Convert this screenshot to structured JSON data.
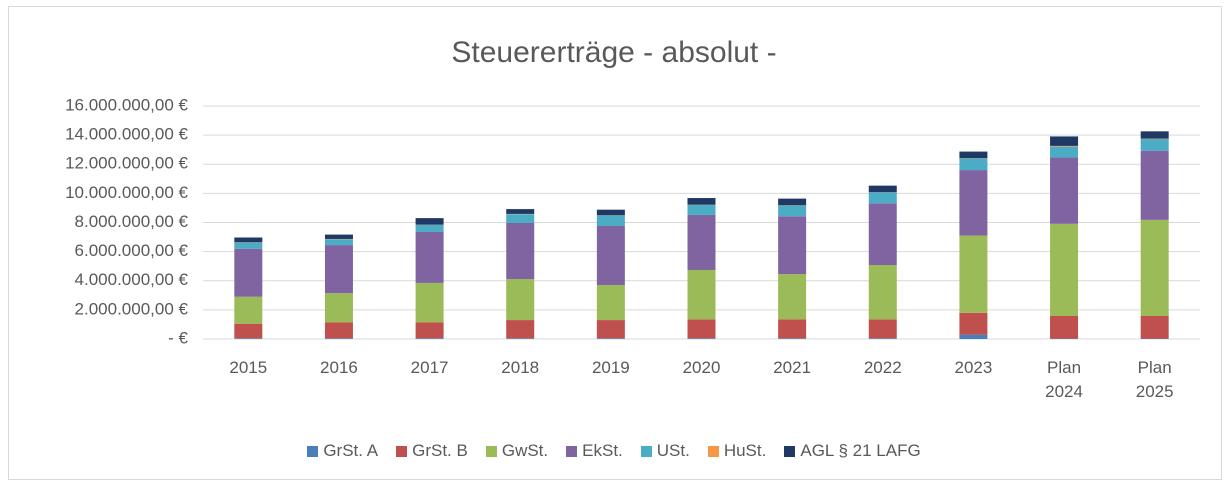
{
  "chart_data": {
    "type": "stacked_bar",
    "title": "Steuererträge - absolut -",
    "categories": [
      "2015",
      "2016",
      "2017",
      "2018",
      "2019",
      "2020",
      "2021",
      "2022",
      "2023",
      "Plan 2024",
      "Plan 2025"
    ],
    "series": [
      {
        "name": "GrSt. A",
        "color": "#4a7ebb",
        "values": [
          50000,
          50000,
          50000,
          50000,
          50000,
          50000,
          50000,
          50000,
          300000,
          30000,
          30000
        ]
      },
      {
        "name": "GrSt. B",
        "color": "#c0504d",
        "values": [
          1000000,
          1100000,
          1100000,
          1250000,
          1250000,
          1300000,
          1300000,
          1300000,
          1500000,
          1550000,
          1550000
        ]
      },
      {
        "name": "GwSt.",
        "color": "#9bbb59",
        "values": [
          1850000,
          2000000,
          2700000,
          2820000,
          2400000,
          3390000,
          3110000,
          3730000,
          5300000,
          6330000,
          6600000
        ]
      },
      {
        "name": "EkSt.",
        "color": "#8064a2",
        "values": [
          3300000,
          3300000,
          3500000,
          3850000,
          4060000,
          3780000,
          3970000,
          4240000,
          4500000,
          4550000,
          4750000
        ]
      },
      {
        "name": "USt.",
        "color": "#4bacc6",
        "values": [
          420000,
          400000,
          480000,
          600000,
          720000,
          680000,
          730000,
          740000,
          800000,
          750000,
          800000
        ]
      },
      {
        "name": "HuSt.",
        "color": "#f79646",
        "values": [
          20000,
          20000,
          20000,
          20000,
          20000,
          20000,
          20000,
          20000,
          20000,
          50000,
          30000
        ]
      },
      {
        "name": "AGL § 21 LAFG",
        "color": "#1f3864",
        "values": [
          330000,
          300000,
          450000,
          330000,
          380000,
          460000,
          460000,
          450000,
          450000,
          650000,
          500000
        ]
      }
    ],
    "ylim": [
      0,
      16000000
    ],
    "yticks": [
      {
        "value": 0,
        "label": "-   €"
      },
      {
        "value": 2000000,
        "label": "2.000.000,00 €"
      },
      {
        "value": 4000000,
        "label": "4.000.000,00 €"
      },
      {
        "value": 6000000,
        "label": "6.000.000,00 €"
      },
      {
        "value": 8000000,
        "label": "8.000.000,00 €"
      },
      {
        "value": 10000000,
        "label": "10.000.000,00 €"
      },
      {
        "value": 12000000,
        "label": "12.000.000,00 €"
      },
      {
        "value": 14000000,
        "label": "14.000.000,00 €"
      },
      {
        "value": 16000000,
        "label": "16.000.000,00 €"
      }
    ],
    "grid": true,
    "legend": "bottom"
  }
}
